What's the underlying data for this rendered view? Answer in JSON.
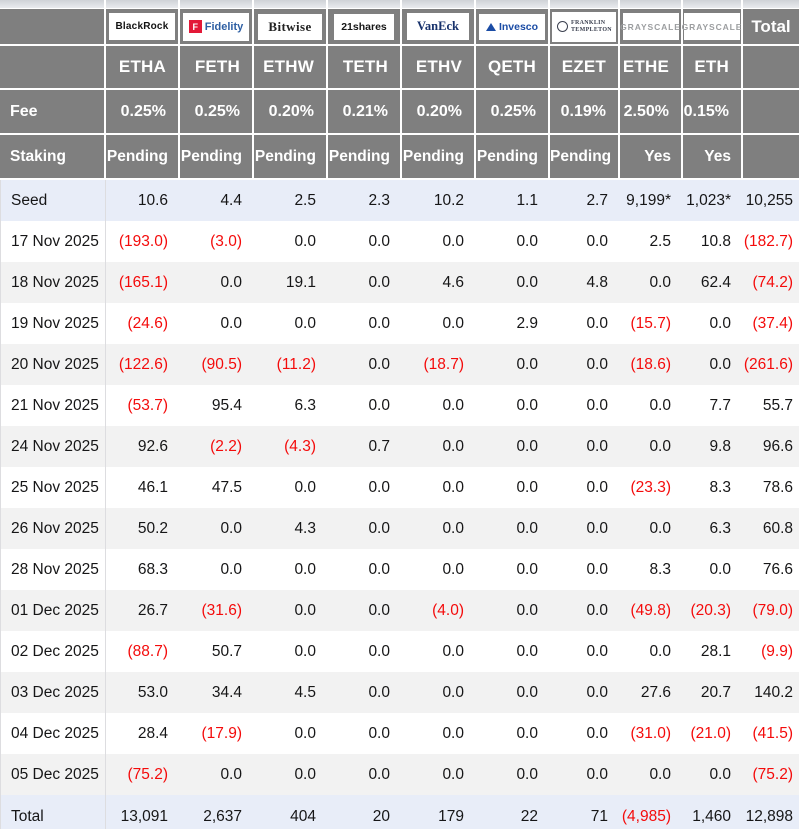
{
  "colors": {
    "header_bg": "#7f7f7f",
    "header_text": "#ffffff",
    "negative_value": "#f40b0b",
    "highlight_row_bg": "#e8edf8",
    "stripe_row_bg": "#f2f2f2"
  },
  "chart_data": {
    "type": "table",
    "total_label": "Total",
    "row_labels": {
      "fee": "Fee",
      "staking": "Staking"
    },
    "funds": [
      {
        "issuer": "BlackRock",
        "ticker": "ETHA",
        "fee": "0.25%",
        "staking": "Pending"
      },
      {
        "issuer": "Fidelity",
        "logo_mark": "F",
        "ticker": "FETH",
        "fee": "0.25%",
        "staking": "Pending"
      },
      {
        "issuer": "Bitwise",
        "ticker": "ETHW",
        "fee": "0.20%",
        "staking": "Pending"
      },
      {
        "issuer": "21shares",
        "ticker": "TETH",
        "fee": "0.21%",
        "staking": "Pending"
      },
      {
        "issuer": "VanEck",
        "ticker": "ETHV",
        "fee": "0.20%",
        "staking": "Pending"
      },
      {
        "issuer": "Invesco",
        "ticker": "QETH",
        "fee": "0.25%",
        "staking": "Pending"
      },
      {
        "issuer": "FRANKLIN TEMPLETON",
        "ticker": "EZET",
        "fee": "0.19%",
        "staking": "Pending"
      },
      {
        "issuer": "GRAYSCALE",
        "ticker": "ETHE",
        "fee": "2.50%",
        "staking": "Yes"
      },
      {
        "issuer": "GRAYSCALE",
        "ticker": "ETH",
        "fee": "0.15%",
        "staking": "Yes"
      }
    ],
    "seed_row": {
      "label": "Seed",
      "values": [
        "10.6",
        "4.4",
        "2.5",
        "2.3",
        "10.2",
        "1.1",
        "2.7",
        "9,199*",
        "1,023*"
      ],
      "total": "10,255"
    },
    "flow_rows": [
      {
        "date": "17 Nov 2025",
        "values": [
          "(193.0)",
          "(3.0)",
          "0.0",
          "0.0",
          "0.0",
          "0.0",
          "0.0",
          "2.5",
          "10.8"
        ],
        "total": "(182.7)"
      },
      {
        "date": "18 Nov 2025",
        "values": [
          "(165.1)",
          "0.0",
          "19.1",
          "0.0",
          "4.6",
          "0.0",
          "4.8",
          "0.0",
          "62.4"
        ],
        "total": "(74.2)"
      },
      {
        "date": "19 Nov 2025",
        "values": [
          "(24.6)",
          "0.0",
          "0.0",
          "0.0",
          "0.0",
          "2.9",
          "0.0",
          "(15.7)",
          "0.0"
        ],
        "total": "(37.4)"
      },
      {
        "date": "20 Nov 2025",
        "values": [
          "(122.6)",
          "(90.5)",
          "(11.2)",
          "0.0",
          "(18.7)",
          "0.0",
          "0.0",
          "(18.6)",
          "0.0"
        ],
        "total": "(261.6)"
      },
      {
        "date": "21 Nov 2025",
        "values": [
          "(53.7)",
          "95.4",
          "6.3",
          "0.0",
          "0.0",
          "0.0",
          "0.0",
          "0.0",
          "7.7"
        ],
        "total": "55.7"
      },
      {
        "date": "24 Nov 2025",
        "values": [
          "92.6",
          "(2.2)",
          "(4.3)",
          "0.7",
          "0.0",
          "0.0",
          "0.0",
          "0.0",
          "9.8"
        ],
        "total": "96.6"
      },
      {
        "date": "25 Nov 2025",
        "values": [
          "46.1",
          "47.5",
          "0.0",
          "0.0",
          "0.0",
          "0.0",
          "0.0",
          "(23.3)",
          "8.3"
        ],
        "total": "78.6"
      },
      {
        "date": "26 Nov 2025",
        "values": [
          "50.2",
          "0.0",
          "4.3",
          "0.0",
          "0.0",
          "0.0",
          "0.0",
          "0.0",
          "6.3"
        ],
        "total": "60.8"
      },
      {
        "date": "28 Nov 2025",
        "values": [
          "68.3",
          "0.0",
          "0.0",
          "0.0",
          "0.0",
          "0.0",
          "0.0",
          "8.3",
          "0.0"
        ],
        "total": "76.6"
      },
      {
        "date": "01 Dec 2025",
        "values": [
          "26.7",
          "(31.6)",
          "0.0",
          "0.0",
          "(4.0)",
          "0.0",
          "0.0",
          "(49.8)",
          "(20.3)"
        ],
        "total": "(79.0)"
      },
      {
        "date": "02 Dec 2025",
        "values": [
          "(88.7)",
          "50.7",
          "0.0",
          "0.0",
          "0.0",
          "0.0",
          "0.0",
          "0.0",
          "28.1"
        ],
        "total": "(9.9)"
      },
      {
        "date": "03 Dec 2025",
        "values": [
          "53.0",
          "34.4",
          "4.5",
          "0.0",
          "0.0",
          "0.0",
          "0.0",
          "27.6",
          "20.7"
        ],
        "total": "140.2"
      },
      {
        "date": "04 Dec 2025",
        "values": [
          "28.4",
          "(17.9)",
          "0.0",
          "0.0",
          "0.0",
          "0.0",
          "0.0",
          "(31.0)",
          "(21.0)"
        ],
        "total": "(41.5)"
      },
      {
        "date": "05 Dec 2025",
        "values": [
          "(75.2)",
          "0.0",
          "0.0",
          "0.0",
          "0.0",
          "0.0",
          "0.0",
          "0.0",
          "0.0"
        ],
        "total": "(75.2)"
      }
    ],
    "total_row": {
      "label": "Total",
      "values": [
        "13,091",
        "2,637",
        "404",
        "20",
        "179",
        "22",
        "71",
        "(4,985)",
        "1,460"
      ],
      "total": "12,898"
    }
  }
}
